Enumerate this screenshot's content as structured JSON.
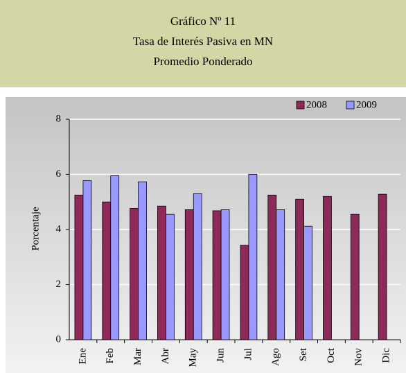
{
  "chart_data": {
    "type": "bar",
    "title": "Gráfico Nº 11",
    "subtitle": "Tasa de Interés Pasiva en MN",
    "subtitle2": "Promedio Ponderado",
    "y_label": "Porcentaje",
    "categories": [
      "Ene",
      "Feb",
      "Mar",
      "Abr",
      "May",
      "Jun",
      "Jul",
      "Ago",
      "Set",
      "Oct",
      "Nov",
      "Dic"
    ],
    "series": [
      {
        "name": "2008",
        "color": "#8e2a5a",
        "values": [
          5.25,
          5.0,
          4.77,
          4.85,
          4.72,
          4.68,
          3.43,
          5.25,
          5.1,
          5.2,
          4.55,
          5.28
        ]
      },
      {
        "name": "2009",
        "color": "#9999ff",
        "values": [
          5.77,
          5.95,
          5.73,
          4.55,
          5.3,
          4.72,
          6.0,
          4.72,
          4.12,
          null,
          null,
          null
        ]
      }
    ],
    "ylim": [
      0,
      8
    ],
    "yticks": [
      0,
      2,
      4,
      6,
      8
    ],
    "grid": true,
    "legend": "top-right"
  }
}
